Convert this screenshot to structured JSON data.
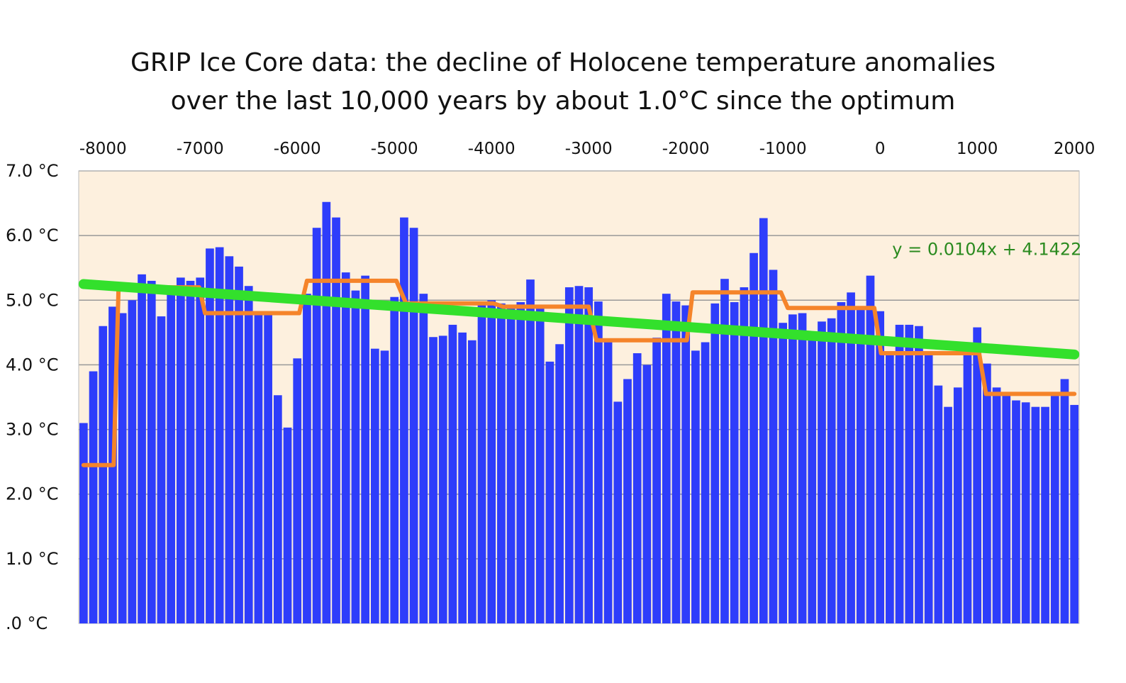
{
  "chart_data": {
    "type": "bar",
    "title": "GRIP Ice Core data: the decline of Holocene temperature anomalies",
    "subtitle": "over the last 10,000 years by about 1.0°C since the optimum",
    "xlabel": "",
    "ylabel": "",
    "xlim": [
      -8250,
      2050
    ],
    "ylim": [
      0,
      7
    ],
    "grid": true,
    "x_tick_labels": [
      "-8000",
      "-7000",
      "-6000",
      "-5000",
      "-4000",
      "-3000",
      "-2000",
      "-1000",
      "0",
      "1000",
      "2000"
    ],
    "y_tick_labels": [
      ".0 °C",
      "1.0 °C",
      "2.0 °C",
      "3.0 °C",
      "4.0 °C",
      "5.0 °C",
      "6.0 °C",
      "7.0 °C"
    ],
    "bar_start_year": -8200,
    "bar_step_years": 100,
    "values": [
      3.1,
      3.9,
      4.6,
      4.9,
      4.8,
      5.0,
      5.4,
      5.3,
      4.75,
      5.2,
      5.35,
      5.3,
      5.35,
      5.8,
      5.82,
      5.68,
      5.52,
      5.22,
      4.83,
      4.83,
      3.53,
      3.03,
      4.1,
      5.1,
      6.12,
      6.52,
      6.28,
      5.43,
      5.15,
      5.38,
      4.25,
      4.22,
      5.05,
      6.28,
      6.12,
      5.1,
      4.43,
      4.45,
      4.62,
      4.5,
      4.38,
      4.98,
      5.0,
      4.95,
      4.92,
      4.97,
      5.32,
      4.9,
      4.05,
      4.32,
      5.2,
      5.22,
      5.2,
      4.98,
      4.38,
      3.43,
      3.78,
      4.18,
      4.0,
      4.42,
      5.1,
      4.98,
      4.92,
      4.22,
      4.35,
      4.95,
      5.33,
      4.97,
      5.2,
      5.73,
      6.27,
      5.47,
      4.65,
      4.78,
      4.8,
      4.5,
      4.67,
      4.72,
      4.97,
      5.12,
      4.88,
      5.38,
      4.83,
      4.18,
      4.62,
      4.62,
      4.6,
      4.18,
      3.68,
      3.35,
      3.65,
      4.15,
      4.58,
      4.02,
      3.65,
      3.55,
      3.45,
      3.42,
      3.35,
      3.35,
      3.52,
      3.78,
      3.38
    ],
    "series": [
      {
        "name": "",
        "type": "step-line",
        "color": "#f5842a",
        "points": [
          [
            -8200,
            2.45
          ],
          [
            -7890,
            2.45
          ],
          [
            -7840,
            5.2
          ],
          [
            -7010,
            5.2
          ],
          [
            -6950,
            4.8
          ],
          [
            -5980,
            4.8
          ],
          [
            -5900,
            5.3
          ],
          [
            -4980,
            5.3
          ],
          [
            -4880,
            4.95
          ],
          [
            -3980,
            4.95
          ],
          [
            -3880,
            4.9
          ],
          [
            -3000,
            4.9
          ],
          [
            -2920,
            4.38
          ],
          [
            -1990,
            4.38
          ],
          [
            -1930,
            5.12
          ],
          [
            -1020,
            5.12
          ],
          [
            -950,
            4.88
          ],
          [
            -60,
            4.88
          ],
          [
            10,
            4.18
          ],
          [
            1020,
            4.18
          ],
          [
            1090,
            3.55
          ],
          [
            2000,
            3.55
          ]
        ]
      },
      {
        "name": "",
        "type": "trendline",
        "color": "#33e02c",
        "points": [
          [
            -8200,
            5.25
          ],
          [
            2000,
            4.16
          ]
        ]
      }
    ],
    "annotations": [
      {
        "text": "y = 0.0104x + 4.1422",
        "x": 1100,
        "y": 5.7,
        "color": "#2a8a1f"
      }
    ],
    "colors": {
      "bar": "#2e3dfb",
      "plot_background": "#fdf0de",
      "grid": "#999999"
    }
  }
}
